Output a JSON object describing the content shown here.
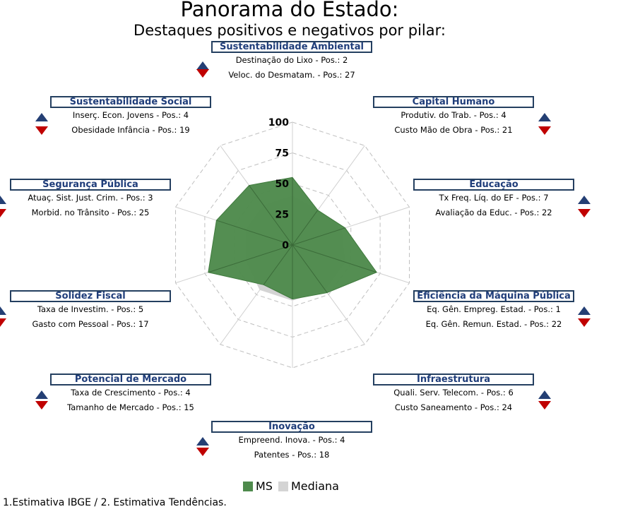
{
  "header": {
    "title": "Panorama do Estado:",
    "subtitle": "Destaques positivos e negativos por pilar:"
  },
  "colors": {
    "ms": "#4e8a4c",
    "mediana": "#d4d4d4",
    "box_border": "#243f60",
    "box_text": "#1f3d7a",
    "arrow_up": "#243f74",
    "arrow_down": "#c00000"
  },
  "pillars": [
    {
      "name": "Sustentabilidade Ambiental",
      "positive": "Destinação do Lixo - Pos.: 2",
      "negative": "Veloc. do Desmatam. - Pos.: 27"
    },
    {
      "name": "Capital Humano",
      "positive": "Produtiv. do Trab. - Pos.: 4",
      "negative": "Custo Mão de Obra - Pos.: 21"
    },
    {
      "name": "Educação",
      "positive": "Tx Freq. Líq. do EF - Pos.: 7",
      "negative": "Avaliação da Educ. - Pos.: 22"
    },
    {
      "name": "Eficiência da Máquina Pública",
      "positive": "Eq. Gên. Empreg. Estad. - Pos.: 1",
      "negative": "Eq. Gên. Remun. Estad. - Pos.: 22"
    },
    {
      "name": "Infraestrutura",
      "positive": "Quali. Serv. Telecom. - Pos.: 6",
      "negative": "Custo Saneamento - Pos.: 24"
    },
    {
      "name": "Inovação",
      "positive": "Empreend. Inova. - Pos.: 4",
      "negative": "Patentes - Pos.: 18"
    },
    {
      "name": "Potencial de Mercado",
      "positive": "Taxa de Crescimento - Pos.: 4",
      "negative": "Tamanho de Mercado - Pos.: 15"
    },
    {
      "name": "Solidez Fiscal",
      "positive": "Taxa de Investim. - Pos.: 5",
      "negative": "Gasto com Pessoal - Pos.: 17"
    },
    {
      "name": "Segurança Pública",
      "positive": "Atuaç. Sist. Just. Crim. - Pos.: 3",
      "negative": "Morbid. no Trânsito - Pos.: 25"
    },
    {
      "name": "Sustentabilidade Social",
      "positive": "Inserç. Econ. Jovens - Pos.: 4",
      "negative": "Obesidade Infância - Pos.: 19"
    }
  ],
  "chart_data": {
    "type": "radar",
    "axes": [
      "Sustentabilidade Ambiental",
      "Capital Humano",
      "Educação",
      "Eficiência da Máquina Pública",
      "Infraestrutura",
      "Inovação",
      "Potencial de Mercado",
      "Solidez Fiscal",
      "Segurança Pública",
      "Sustentabilidade Social"
    ],
    "rlim": [
      0,
      100
    ],
    "ticks": [
      "0",
      "25",
      "50",
      "75",
      "100"
    ],
    "tick_values": [
      0,
      25,
      50,
      75,
      100
    ],
    "grid": true,
    "series": [
      {
        "name": "MS",
        "values": [
          55,
          35,
          45,
          72,
          48,
          44,
          40,
          72,
          65,
          60
        ]
      },
      {
        "name": "Mediana",
        "values": [
          40,
          35,
          42,
          45,
          45,
          45,
          45,
          40,
          40,
          40
        ]
      }
    ],
    "legend_position": "bottom"
  },
  "legend": {
    "ms": "MS",
    "mediana": "Mediana"
  },
  "footnote": "1.Estimativa IBGE / 2. Estimativa Tendências."
}
